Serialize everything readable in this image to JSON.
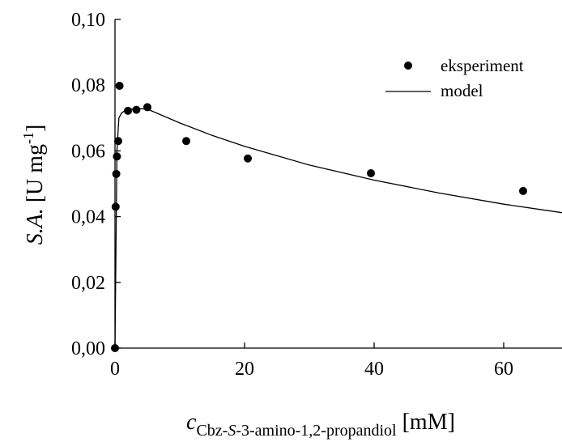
{
  "chart_data": {
    "type": "scatter",
    "xlim": [
      0,
      69
    ],
    "ylim": [
      0,
      0.1
    ],
    "x_ticks": [
      {
        "value": 0,
        "label": "0"
      },
      {
        "value": 20,
        "label": "20"
      },
      {
        "value": 40,
        "label": "40"
      },
      {
        "value": 60,
        "label": "60"
      }
    ],
    "y_ticks": [
      {
        "value": 0,
        "label": "0,00"
      },
      {
        "value": 0.02,
        "label": "0,02"
      },
      {
        "value": 0.04,
        "label": "0,04"
      },
      {
        "value": 0.06,
        "label": "0,06"
      },
      {
        "value": 0.08,
        "label": "0,08"
      },
      {
        "value": 0.1,
        "label": "0,10"
      }
    ],
    "xlabel": {
      "symbol": "c",
      "subscript_pre": "Cbz-",
      "subscript_italic": "S",
      "subscript_post": "-3-amino-1,2-propandiol",
      "unit": " [mM]"
    },
    "ylabel": {
      "italic": "S.A.",
      "unit_pre": " [U mg",
      "unit_sup": "-1",
      "unit_post": "]"
    },
    "legend": {
      "position": "top-right",
      "items": [
        {
          "label": "eksperiment",
          "marker": "dot"
        },
        {
          "label": "model",
          "marker": "line"
        }
      ]
    },
    "series": [
      {
        "name": "eksperiment",
        "kind": "points",
        "x": [
          0,
          0.1,
          0.2,
          0.3,
          0.5,
          0.7,
          2,
          3.3,
          5,
          11,
          20.5,
          39.5,
          63
        ],
        "y": [
          0,
          0.043,
          0.053,
          0.0583,
          0.063,
          0.0798,
          0.0722,
          0.0725,
          0.0733,
          0.063,
          0.0577,
          0.0532,
          0.0478
        ]
      },
      {
        "name": "model",
        "kind": "line",
        "x": [
          0,
          0.3,
          0.6,
          1,
          1.5,
          2.5,
          4,
          5,
          10,
          15,
          20,
          30,
          40,
          50,
          60,
          69
        ],
        "y": [
          0,
          0.06,
          0.07,
          0.0715,
          0.0722,
          0.0727,
          0.0728,
          0.0727,
          0.0685,
          0.0647,
          0.0614,
          0.0557,
          0.0511,
          0.0472,
          0.0438,
          0.0412
        ]
      }
    ]
  }
}
